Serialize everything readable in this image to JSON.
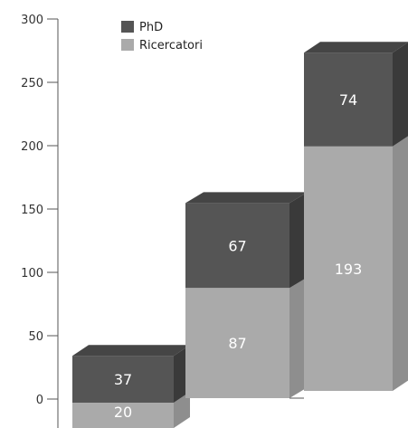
{
  "chart_data": {
    "type": "bar",
    "stacked": true,
    "style": "3d",
    "title": "",
    "xlabel": "",
    "ylabel": "",
    "ylim": [
      0,
      300
    ],
    "y_ticks": [
      "0",
      "50",
      "100",
      "150",
      "200",
      "250",
      "300"
    ],
    "categories": [
      "",
      "",
      ""
    ],
    "series": [
      {
        "name": "Ricercatori",
        "values": [
          20,
          87,
          193
        ],
        "labels": [
          "20",
          "87",
          "193"
        ],
        "color": "#aaaaaa"
      },
      {
        "name": "PhD",
        "values": [
          37,
          67,
          74
        ],
        "labels": [
          "37",
          "67",
          "74"
        ],
        "color": "#555555"
      }
    ],
    "legend": {
      "position": "top-left",
      "items": [
        "PhD",
        "Ricercatori"
      ]
    },
    "grid": false
  },
  "colors": {
    "phd_front": "#555555",
    "phd_top": "#454545",
    "phd_side": "#3a3a3a",
    "ric_front": "#aaaaaa",
    "ric_side": "#8e8e8e",
    "axis": "#555555"
  }
}
